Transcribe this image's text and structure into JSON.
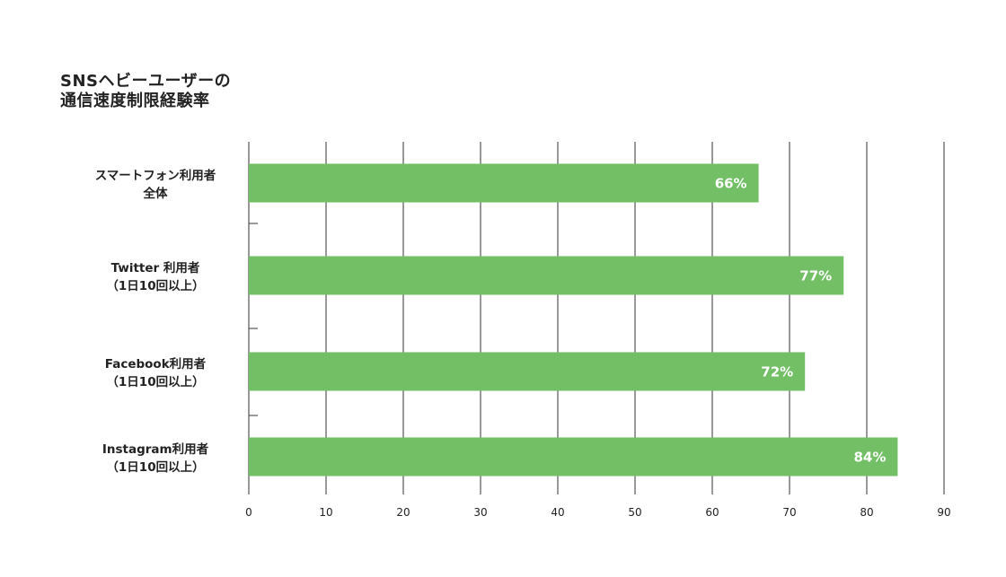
{
  "chart_data": {
    "type": "bar",
    "orientation": "horizontal",
    "title_lines": [
      "SNSヘビーユーザーの",
      "通信速度制限経験率"
    ],
    "categories": [
      [
        "スマートフォン利用者",
        "全体"
      ],
      [
        "Twitter 利用者",
        "（1日10回以上）"
      ],
      [
        "Facebook利用者",
        "（1日10回以上）"
      ],
      [
        "Instagram利用者",
        "（1日10回以上）"
      ]
    ],
    "values": [
      66,
      77,
      72,
      84
    ],
    "value_labels": [
      "66%",
      "77%",
      "72%",
      "84%"
    ],
    "xlim": [
      0,
      90
    ],
    "xticks": [
      0,
      10,
      20,
      30,
      40,
      50,
      60,
      70,
      80,
      90
    ],
    "grid": "vertical",
    "bar_color": "#72bf66",
    "value_label_color": "#ffffff",
    "gridline_color": "#555555",
    "text_color": "#222222"
  }
}
